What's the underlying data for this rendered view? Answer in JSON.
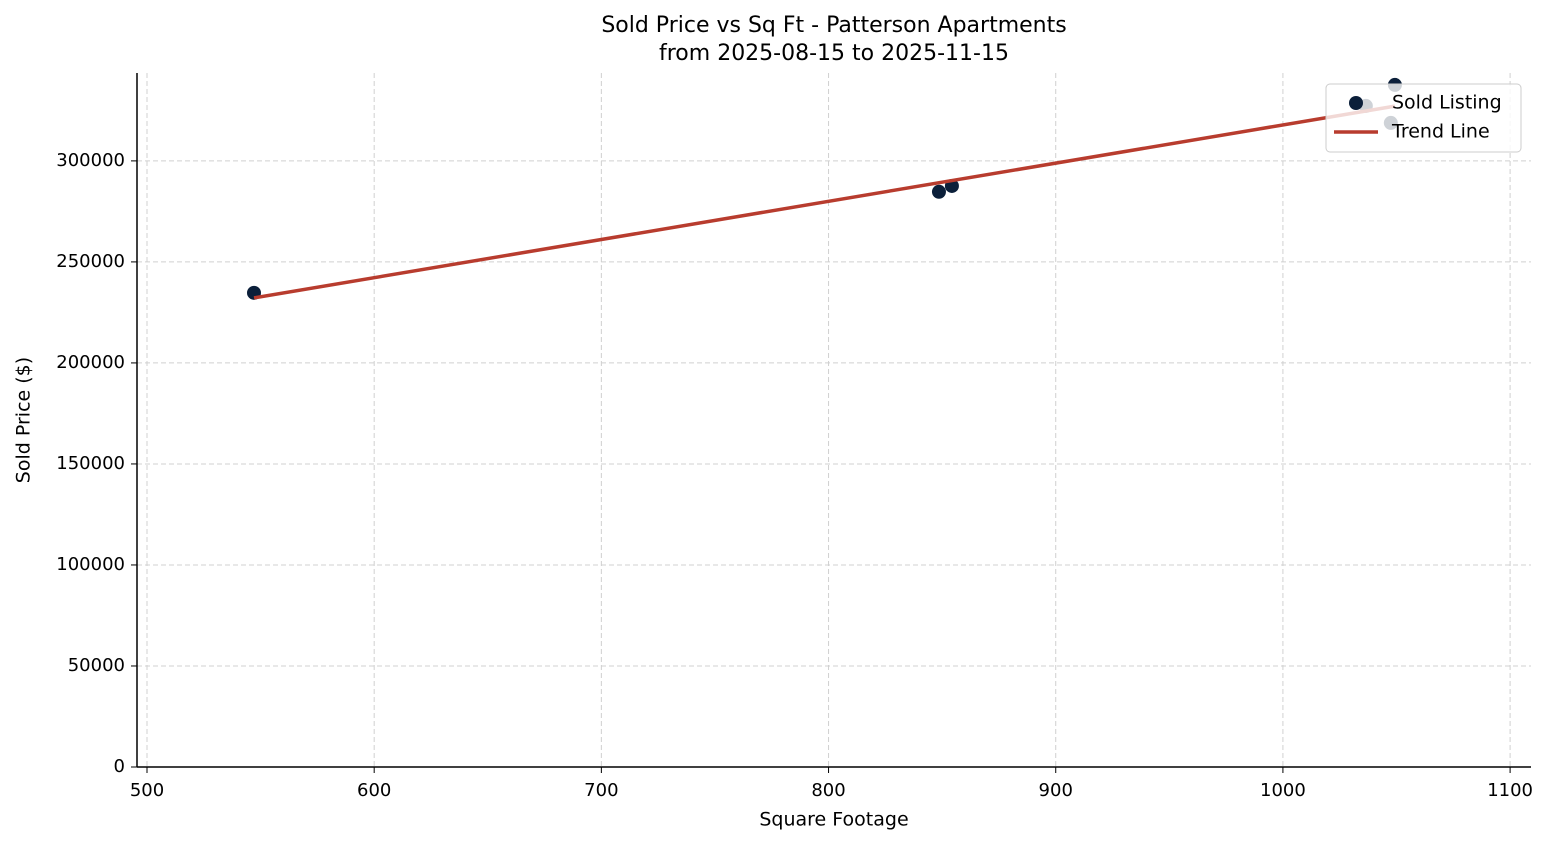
{
  "chart_data": {
    "type": "scatter",
    "title": "Sold Price vs Sq Ft - Patterson Apartments",
    "subtitle": "from 2025-08-15 to 2025-11-15",
    "x_label": "Square Footage",
    "y_label": "Sold Price ($)",
    "xlim": [
      495.6,
      1109.2
    ],
    "ylim": [
      0,
      343500
    ],
    "xticks": [
      500,
      600,
      700,
      800,
      900,
      1000,
      1100
    ],
    "yticks": [
      0,
      50000,
      100000,
      150000,
      200000,
      250000,
      300000
    ],
    "grid": true,
    "legend": "upper right",
    "series": [
      {
        "name": "Sold Listing",
        "color": "#0b1f3a",
        "type": "scatter",
        "x": [
          547.1,
          848.6,
          854.3,
          1036.5,
          1047.5,
          1049.3
        ],
        "values": [
          234700,
          284700,
          287600,
          327200,
          318800,
          337600
        ]
      },
      {
        "name": "Trend Line",
        "color": "#b83c2e",
        "type": "line",
        "x": [
          547.1,
          1049.3
        ],
        "values": [
          232200,
          327100
        ]
      }
    ]
  }
}
